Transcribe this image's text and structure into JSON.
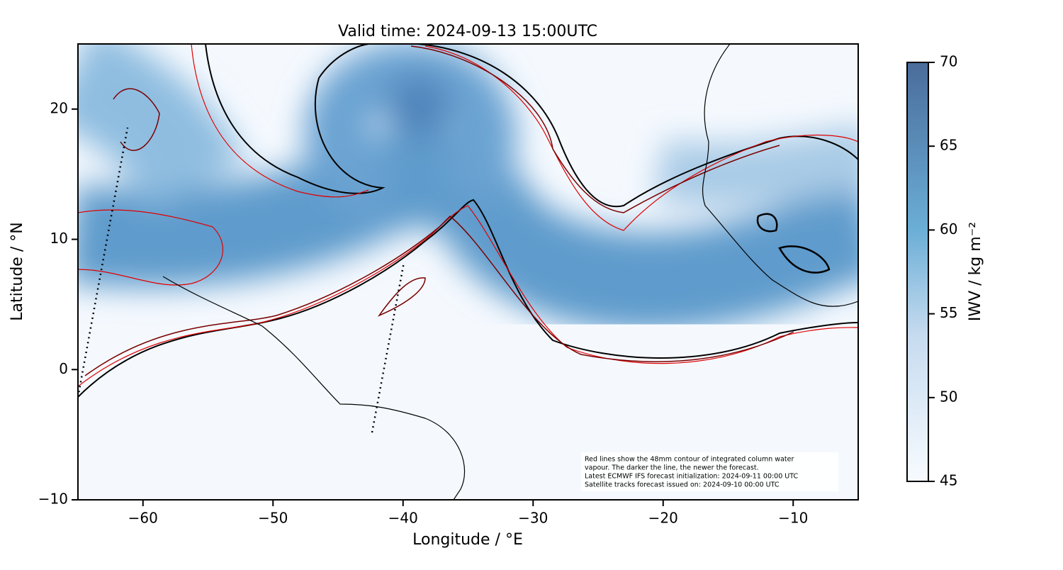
{
  "chart_data": {
    "type": "map",
    "title": "Valid time: 2024-09-13 15:00UTC",
    "xlabel": "Longitude / °E",
    "ylabel": "Latitude / °N",
    "xlim": [
      -65,
      -5
    ],
    "ylim": [
      -10,
      25
    ],
    "xticks": [
      {
        "value": -60,
        "label": "−60"
      },
      {
        "value": -50,
        "label": "−50"
      },
      {
        "value": -40,
        "label": "−40"
      },
      {
        "value": -30,
        "label": "−30"
      },
      {
        "value": -20,
        "label": "−20"
      },
      {
        "value": -10,
        "label": "−10"
      }
    ],
    "yticks": [
      {
        "value": -10,
        "label": "−10"
      },
      0,
      10,
      20
    ],
    "colorbar": {
      "label": "IWV / kg m⁻²",
      "lim": [
        45,
        70
      ],
      "ticks": [
        45,
        50,
        55,
        60,
        65,
        70
      ],
      "colors": [
        "#f7fbff",
        "#4a6c9b"
      ]
    },
    "annotation": [
      "Red lines show the 48mm contour of integrated column water",
      "vapour. The darker the line, the newer the forecast.",
      "Latest ECMWF IFS forecast initialization: 2024-09-11 00:00 UTC",
      "Satellite tracks forecast issued on: 2024-09-10 00:00 UTC"
    ]
  }
}
